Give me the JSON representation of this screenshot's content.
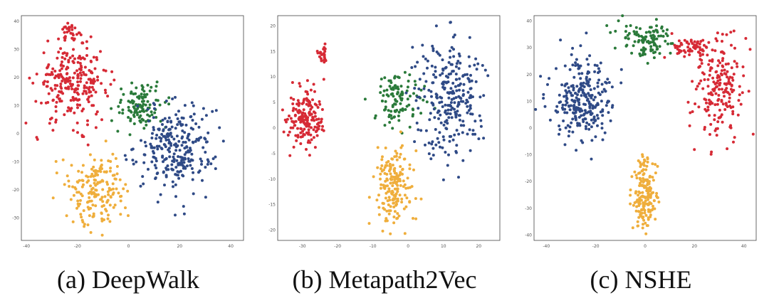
{
  "colors": {
    "red": "#d62a35",
    "green": "#2a7a3a",
    "blue": "#2f4a86",
    "orange": "#efae3c"
  },
  "chart_data": [
    {
      "type": "scatter",
      "caption": "(a) DeepWalk",
      "xticks": [
        "-40",
        "-20",
        "0",
        "20",
        "40"
      ],
      "yticks": [
        "40",
        "30",
        "20",
        "10",
        "0",
        "-10",
        "-20",
        "-30"
      ],
      "xlim": [
        -42,
        45
      ],
      "ylim": [
        -38,
        42
      ],
      "clusters": [
        {
          "color": "red",
          "cx": -22,
          "cy": 18,
          "rx": 14,
          "ry": 14,
          "n": 260
        },
        {
          "color": "red",
          "cx": -23,
          "cy": 36,
          "rx": 2.5,
          "ry": 3,
          "n": 25
        },
        {
          "color": "green",
          "cx": 5,
          "cy": 10,
          "rx": 10,
          "ry": 8,
          "n": 110
        },
        {
          "color": "blue",
          "cx": 18,
          "cy": -5,
          "rx": 15,
          "ry": 16,
          "n": 270
        },
        {
          "color": "orange",
          "cx": -12,
          "cy": -20,
          "rx": 11,
          "ry": 13,
          "n": 180
        }
      ]
    },
    {
      "type": "scatter",
      "caption": "(b) Metapath2Vec",
      "xticks": [
        "-30",
        "-20",
        "-10",
        "0",
        "10",
        "20"
      ],
      "yticks": [
        "20",
        "15",
        "10",
        "5",
        "0",
        "-5",
        "-10",
        "-15",
        "-20"
      ],
      "xlim": [
        -37,
        26
      ],
      "ylim": [
        -22,
        22
      ],
      "clusters": [
        {
          "color": "red",
          "cx": -29,
          "cy": 2,
          "rx": 5,
          "ry": 6,
          "n": 170
        },
        {
          "color": "red",
          "cx": -24,
          "cy": 14,
          "rx": 1.5,
          "ry": 1.7,
          "n": 25
        },
        {
          "color": "green",
          "cx": -3,
          "cy": 6,
          "rx": 7,
          "ry": 5,
          "n": 110
        },
        {
          "color": "blue",
          "cx": 12,
          "cy": 6,
          "rx": 9,
          "ry": 12,
          "n": 270
        },
        {
          "color": "orange",
          "cx": -4,
          "cy": -11,
          "rx": 5.5,
          "ry": 7,
          "n": 180
        }
      ]
    },
    {
      "type": "scatter",
      "caption": "(c) NSHE",
      "xticks": [
        "-40",
        "-20",
        "0",
        "20",
        "40"
      ],
      "yticks": [
        "40",
        "30",
        "20",
        "10",
        "0",
        "-10",
        "-20",
        "-30",
        "-40"
      ],
      "xlim": [
        -45,
        45
      ],
      "ylim": [
        -42,
        42
      ],
      "clusters": [
        {
          "color": "blue",
          "cx": -25,
          "cy": 10,
          "rx": 13,
          "ry": 15,
          "n": 270
        },
        {
          "color": "green",
          "cx": 0,
          "cy": 33,
          "rx": 11,
          "ry": 6,
          "n": 110
        },
        {
          "color": "red",
          "cx": 30,
          "cy": 15,
          "rx": 10,
          "ry": 20,
          "n": 200
        },
        {
          "color": "red",
          "cx": 18,
          "cy": 30,
          "rx": 8,
          "ry": 4,
          "n": 60
        },
        {
          "color": "orange",
          "cx": 0,
          "cy": -25,
          "rx": 5,
          "ry": 13,
          "n": 180
        }
      ]
    }
  ]
}
